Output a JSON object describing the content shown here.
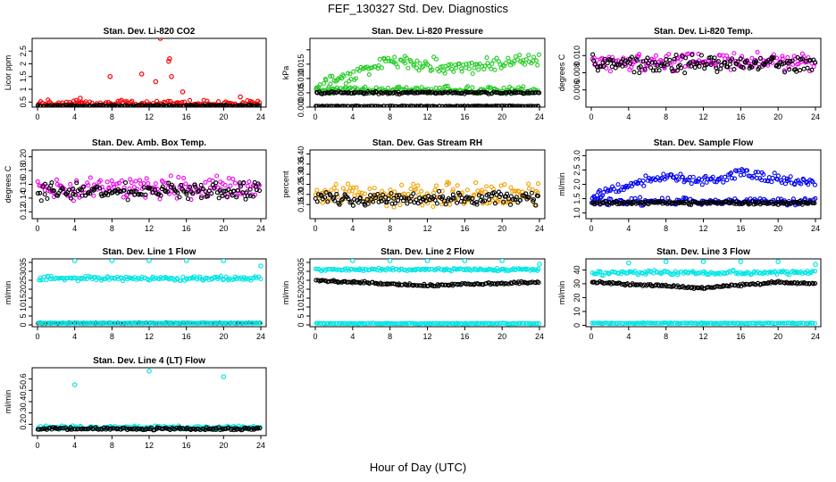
{
  "title": "FEF_130327  Std. Dev. Diagnostics",
  "x_axis_label": "Hour of Day (UTC)",
  "colors": {
    "red": "#ff0000",
    "green": "#22cc22",
    "magenta": "#ee00ee",
    "orange": "#f0a000",
    "blue": "#0000ee",
    "cyan": "#00e5e5",
    "black": "#000000"
  },
  "chart_data": [
    {
      "id": "co2",
      "type": "scatter",
      "title": "Stan. Dev. Li-820 CO2",
      "ylabel": "Licor ppm",
      "xlim": [
        0,
        24
      ],
      "xticks": [
        0,
        4,
        8,
        12,
        16,
        20,
        24
      ],
      "ylim": [
        0.3,
        3.0
      ],
      "yticks": [
        0.5,
        1.0,
        1.5,
        2.0,
        2.5
      ],
      "ytick_labels": [
        "0.5",
        "1",
        "1.5",
        "2",
        "2.5"
      ],
      "series": [
        {
          "color": "red",
          "approx_level": 0.45,
          "spread": 0.15,
          "outliers": [
            [
              4.6,
              0.65
            ],
            [
              7.8,
              1.5
            ],
            [
              11.2,
              1.6
            ],
            [
              12.7,
              1.3
            ],
            [
              13.2,
              3.0
            ],
            [
              14.1,
              2.1
            ],
            [
              14.2,
              2.2
            ],
            [
              14.4,
              1.5
            ],
            [
              15.6,
              0.9
            ],
            [
              21.8,
              0.7
            ]
          ]
        },
        {
          "color": "black",
          "approx_level": 0.35,
          "spread": 0.05
        }
      ]
    },
    {
      "id": "pressure",
      "type": "scatter",
      "title": "Stan. Dev. Li-820 Pressure",
      "ylabel": "kPa",
      "xlim": [
        0,
        24
      ],
      "xticks": [
        0,
        4,
        8,
        12,
        16,
        20,
        24
      ],
      "ylim": [
        0,
        0.024
      ],
      "yticks": [
        0.0,
        0.005,
        0.01,
        0.015,
        0.02
      ],
      "ytick_labels": [
        "0.000",
        "0.005",
        "0.010",
        "0.015",
        ""
      ],
      "series": [
        {
          "color": "green",
          "approx_level": 0.011,
          "spread": 0.003,
          "trend": [
            [
              0,
              0.007
            ],
            [
              8,
              0.016
            ],
            [
              16,
              0.014
            ],
            [
              24,
              0.017
            ]
          ]
        },
        {
          "color": "green",
          "approx_level": 0.006,
          "spread": 0.0015
        },
        {
          "color": "black",
          "approx_level": 0.005,
          "spread": 0.0005
        },
        {
          "color": "black",
          "approx_level": 0.0003,
          "spread": 0.0002
        }
      ]
    },
    {
      "id": "temp",
      "type": "scatter",
      "title": "Stan. Dev. Li-820 Temp.",
      "ylabel": "degrees C",
      "xlim": [
        0,
        24
      ],
      "xticks": [
        0,
        4,
        8,
        12,
        16,
        20,
        24
      ],
      "ylim": [
        0.004,
        0.012
      ],
      "yticks": [
        0.006,
        0.008,
        0.01
      ],
      "ytick_labels": [
        "0.006",
        "0.008",
        "0.010"
      ],
      "series": [
        {
          "color": "magenta",
          "approx_level": 0.0093,
          "spread": 0.0012
        },
        {
          "color": "black",
          "approx_level": 0.009,
          "spread": 0.0012
        }
      ]
    },
    {
      "id": "boxtemp",
      "type": "scatter",
      "title": "Stan. Dev. Amb. Box Temp.",
      "ylabel": "degrees C",
      "xlim": [
        0,
        24
      ],
      "xticks": [
        0,
        4,
        8,
        12,
        16,
        20,
        24
      ],
      "ylim": [
        0.11,
        0.21
      ],
      "yticks": [
        0.12,
        0.14,
        0.16,
        0.18,
        0.2
      ],
      "ytick_labels": [
        "0.12",
        "0.14",
        "0.16",
        "0.18",
        "0.20"
      ],
      "series": [
        {
          "color": "magenta",
          "approx_level": 0.155,
          "spread": 0.02
        },
        {
          "color": "black",
          "approx_level": 0.15,
          "spread": 0.015
        }
      ]
    },
    {
      "id": "rh",
      "type": "scatter",
      "title": "Stan. Dev. Gas Stream RH",
      "ylabel": "percent",
      "xlim": [
        0,
        24
      ],
      "xticks": [
        0,
        4,
        8,
        12,
        16,
        20,
        24
      ],
      "ylim": [
        0.08,
        0.42
      ],
      "yticks": [
        0.15,
        0.2,
        0.25,
        0.3,
        0.35,
        0.4
      ],
      "ytick_labels": [
        "0.15",
        "0.20",
        "0.25",
        "0.30",
        "0.35",
        "0.40"
      ],
      "series": [
        {
          "color": "orange",
          "approx_level": 0.2,
          "spread": 0.07
        },
        {
          "color": "black",
          "approx_level": 0.18,
          "spread": 0.04
        }
      ]
    },
    {
      "id": "sample",
      "type": "scatter",
      "title": "Stan. Dev. Sample Flow",
      "ylabel": "ml/min",
      "xlim": [
        0,
        24
      ],
      "xticks": [
        0,
        4,
        8,
        12,
        16,
        20,
        24
      ],
      "ylim": [
        0.8,
        3.2
      ],
      "yticks": [
        1.0,
        1.5,
        2.0,
        2.5,
        3.0
      ],
      "ytick_labels": [
        "1.0",
        "1.5",
        "2.0",
        "2.5",
        "3.0"
      ],
      "series": [
        {
          "color": "blue",
          "approx_level": 1.4,
          "spread": 0.15
        },
        {
          "color": "blue",
          "approx_level": 2.0,
          "spread": 0.2,
          "trend": [
            [
              0,
              1.6
            ],
            [
              8,
              2.3
            ],
            [
              12,
              2.1
            ],
            [
              16,
              2.4
            ],
            [
              24,
              2.0
            ]
          ]
        },
        {
          "color": "black",
          "approx_level": 1.35,
          "spread": 0.07
        }
      ]
    },
    {
      "id": "line1",
      "type": "scatter",
      "title": "Stan. Dev. Line 1 Flow",
      "ylabel": "ml/min",
      "xlim": [
        0,
        24
      ],
      "xticks": [
        0,
        4,
        8,
        12,
        16,
        20,
        24
      ],
      "ylim": [
        -1,
        37
      ],
      "yticks": [
        0,
        5,
        10,
        15,
        20,
        25,
        30,
        35
      ],
      "ytick_labels": [
        "0",
        "5",
        "10",
        "15",
        "20",
        "25",
        "30",
        "35"
      ],
      "series": [
        {
          "color": "cyan",
          "approx_level": 26,
          "spread": 1.5,
          "outliers": [
            [
              4,
              36
            ],
            [
              8,
              36
            ],
            [
              12,
              36
            ],
            [
              16,
              36
            ],
            [
              20,
              36
            ],
            [
              24,
              33
            ]
          ]
        },
        {
          "color": "black",
          "approx_level": 1,
          "spread": 0.2
        },
        {
          "color": "cyan",
          "approx_level": 1,
          "spread": 0.2
        }
      ]
    },
    {
      "id": "line2",
      "type": "scatter",
      "title": "Stan. Dev. Line 2 Flow",
      "ylabel": "ml/min",
      "xlim": [
        0,
        24
      ],
      "xticks": [
        0,
        4,
        8,
        12,
        16,
        20,
        24
      ],
      "ylim": [
        -1,
        37
      ],
      "yticks": [
        0,
        5,
        10,
        15,
        20,
        25,
        30,
        35
      ],
      "ytick_labels": [
        "0",
        "5",
        "10",
        "15",
        "20",
        "25",
        "30",
        "35"
      ],
      "series": [
        {
          "color": "cyan",
          "approx_level": 31,
          "spread": 1,
          "outliers": [
            [
              4,
              36
            ],
            [
              8,
              36
            ],
            [
              12,
              36
            ],
            [
              16,
              36
            ],
            [
              20,
              36
            ],
            [
              24,
              34
            ]
          ]
        },
        {
          "color": "black",
          "approx_level": 24,
          "spread": 0.8,
          "trend": [
            [
              0,
              25
            ],
            [
              12,
              22
            ],
            [
              24,
              24
            ]
          ]
        },
        {
          "color": "cyan",
          "approx_level": 0.8,
          "spread": 0.3
        }
      ]
    },
    {
      "id": "line3",
      "type": "scatter",
      "title": "Stan. Dev. Line 3 Flow",
      "ylabel": "ml/min",
      "xlim": [
        0,
        24
      ],
      "xticks": [
        0,
        4,
        8,
        12,
        16,
        20,
        24
      ],
      "ylim": [
        -1,
        48
      ],
      "yticks": [
        0,
        10,
        20,
        30,
        40
      ],
      "ytick_labels": [
        "0",
        "10",
        "20",
        "30",
        "40"
      ],
      "series": [
        {
          "color": "cyan",
          "approx_level": 38,
          "spread": 2,
          "outliers": [
            [
              4,
              45
            ],
            [
              8,
              46
            ],
            [
              12,
              46
            ],
            [
              16,
              46
            ],
            [
              20,
              46
            ],
            [
              24,
              44
            ]
          ]
        },
        {
          "color": "black",
          "approx_level": 31,
          "spread": 1,
          "trend": [
            [
              0,
              31
            ],
            [
              12,
              27
            ],
            [
              20,
              31
            ],
            [
              24,
              30
            ]
          ]
        },
        {
          "color": "cyan",
          "approx_level": 1.5,
          "spread": 0.4
        }
      ]
    },
    {
      "id": "line4",
      "type": "scatter",
      "title": "Stan. Dev. Line 4 (LT) Flow",
      "ylabel": "ml/min",
      "xlim": [
        0,
        24
      ],
      "xticks": [
        0,
        4,
        8,
        12,
        16,
        20,
        24
      ],
      "ylim": [
        0.1,
        0.7
      ],
      "yticks": [
        0.2,
        0.3,
        0.4,
        0.5,
        0.6
      ],
      "ytick_labels": [
        "0.2",
        "0.3",
        "0.4",
        "0.5",
        "0.6"
      ],
      "series": [
        {
          "color": "cyan",
          "approx_level": 0.17,
          "spread": 0.02,
          "outliers": [
            [
              4,
              0.55
            ],
            [
              12,
              0.67
            ],
            [
              20,
              0.62
            ]
          ]
        },
        {
          "color": "black",
          "approx_level": 0.16,
          "spread": 0.015
        }
      ]
    }
  ]
}
